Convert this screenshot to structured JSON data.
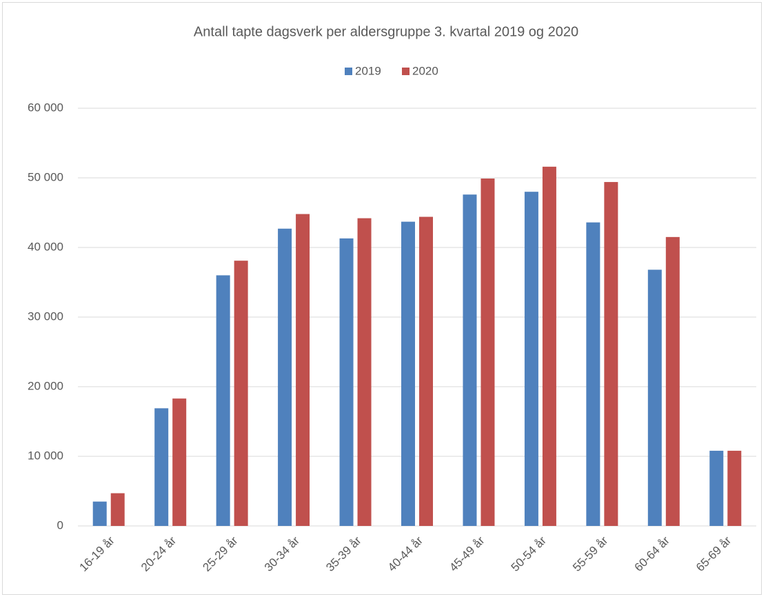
{
  "chart_data": {
    "type": "bar",
    "title": "Antall tapte dagsverk per aldersgruppe 3. kvartal 2019 og 2020",
    "categories": [
      "16-19 år",
      "20-24 år",
      "25-29 år",
      "30-34 år",
      "35-39 år",
      "40-44 år",
      "45-49 år",
      "50-54 år",
      "55-59 år",
      "60-64 år",
      "65-69 år"
    ],
    "series": [
      {
        "name": "2019",
        "color": "#4f81bd",
        "values": [
          3500,
          16900,
          36000,
          42700,
          41300,
          43700,
          47600,
          48000,
          43600,
          36800,
          10800
        ]
      },
      {
        "name": "2020",
        "color": "#c0504d",
        "values": [
          4700,
          18300,
          38100,
          44800,
          44200,
          44400,
          49900,
          51600,
          49400,
          41500,
          10800
        ]
      }
    ],
    "ylim": [
      0,
      60000
    ],
    "yticks": [
      0,
      {
        "value": 10000,
        "label": "10 000"
      },
      {
        "value": 20000,
        "label": "20 000"
      },
      {
        "value": 30000,
        "label": "30 000"
      },
      {
        "value": 40000,
        "label": "40 000"
      },
      {
        "value": 50000,
        "label": "50 000"
      },
      {
        "value": 60000,
        "label": "60 000"
      }
    ],
    "grid": true,
    "legend": "top"
  }
}
